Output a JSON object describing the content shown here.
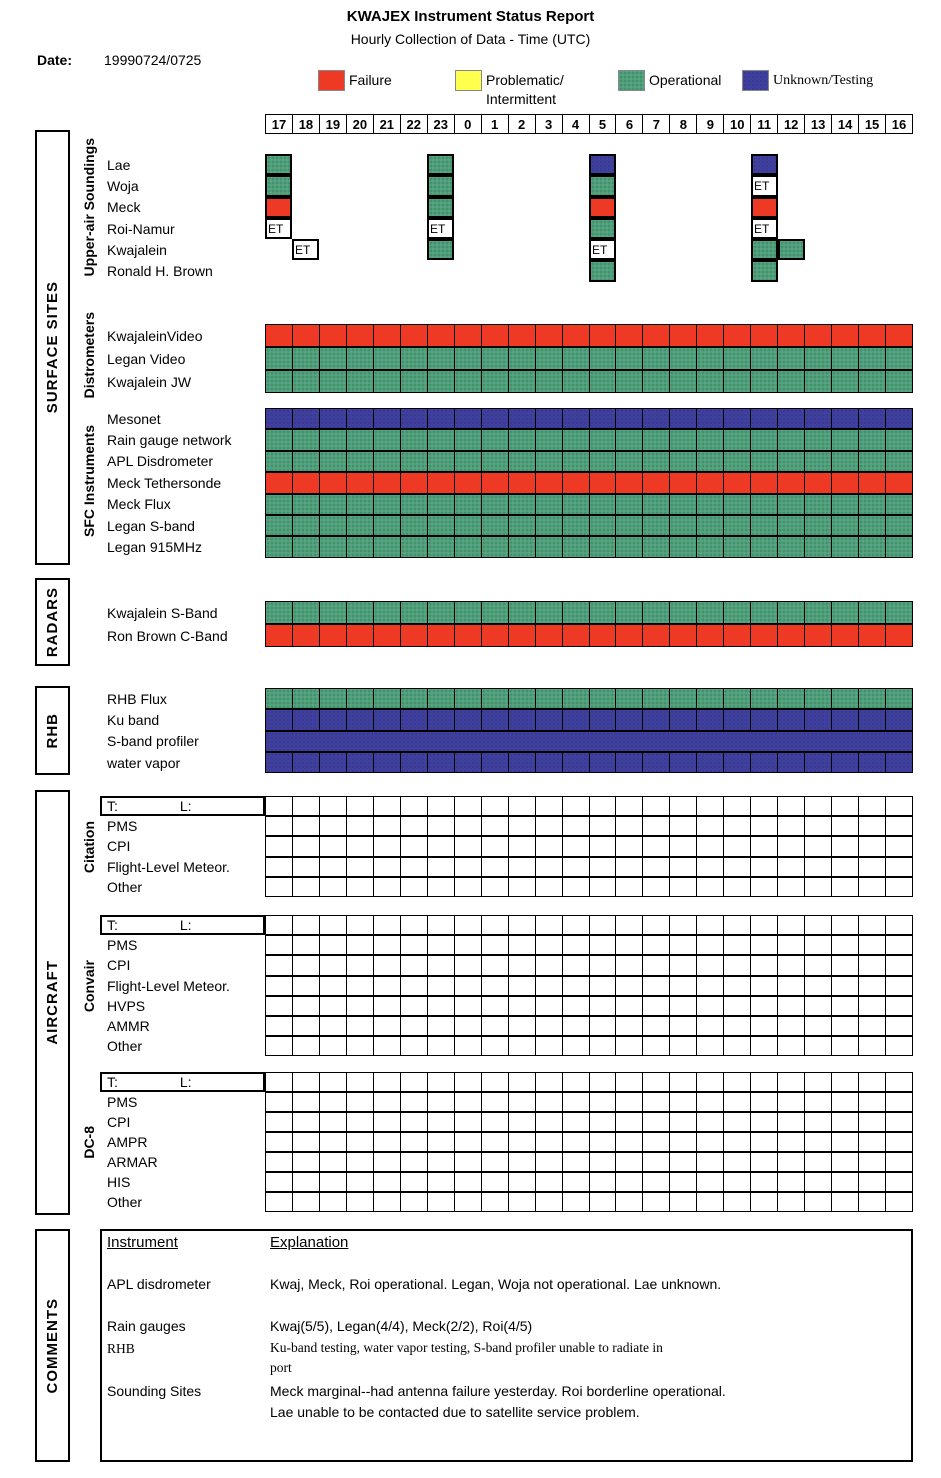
{
  "title": "KWAJEX Instrument Status Report",
  "subtitle": "Hourly Collection of Data - Time (UTC)",
  "date": {
    "label": "Date:",
    "value": "19990724/0725"
  },
  "colors": {
    "F": "#ee3a24",
    "P": "#ffff4d",
    "O": "#4e9e7a",
    "U": "#3f3f9d"
  },
  "legend": {
    "items": [
      {
        "status": "F",
        "label": "Failure"
      },
      {
        "status": "P",
        "label": "Problematic/",
        "label2": "Intermittent"
      },
      {
        "status": "O",
        "label": "Operational"
      },
      {
        "status": "U",
        "label": "Unknown/Testing"
      }
    ]
  },
  "hours": [
    "17",
    "18",
    "19",
    "20",
    "21",
    "22",
    "23",
    "0",
    "1",
    "2",
    "3",
    "4",
    "5",
    "6",
    "7",
    "8",
    "9",
    "10",
    "11",
    "12",
    "13",
    "14",
    "15",
    "16"
  ],
  "side_labels": {
    "surface_sites": "SURFACE SITES",
    "radars": "RADARS",
    "rhb": "RHB",
    "aircraft": "AIRCRAFT",
    "comments": "COMMENTS"
  },
  "soundings": {
    "group_label": "Upper-air Soundings",
    "rows": [
      {
        "label": "Lae",
        "cells": [
          {
            "i": 0,
            "s": "O"
          },
          {
            "i": 6,
            "s": "O"
          },
          {
            "i": 12,
            "s": "U"
          },
          {
            "i": 18,
            "s": "U"
          }
        ]
      },
      {
        "label": "Woja",
        "cells": [
          {
            "i": 0,
            "s": "O"
          },
          {
            "i": 6,
            "s": "O"
          },
          {
            "i": 12,
            "s": "O"
          },
          {
            "i": 18,
            "s": "ET"
          }
        ]
      },
      {
        "label": "Meck",
        "cells": [
          {
            "i": 0,
            "s": "F"
          },
          {
            "i": 6,
            "s": "O"
          },
          {
            "i": 12,
            "s": "F"
          },
          {
            "i": 18,
            "s": "F"
          }
        ]
      },
      {
        "label": "Roi-Namur",
        "cells": [
          {
            "i": 0,
            "s": "ET"
          },
          {
            "i": 6,
            "s": "ET"
          },
          {
            "i": 12,
            "s": "O"
          },
          {
            "i": 18,
            "s": "ET"
          }
        ]
      },
      {
        "label": "Kwajalein",
        "cells": [
          {
            "i": 1,
            "s": "ET"
          },
          {
            "i": 6,
            "s": "O"
          },
          {
            "i": 12,
            "s": "ET"
          },
          {
            "i": 18,
            "s": "O"
          },
          {
            "i": 19,
            "s": "O"
          }
        ]
      },
      {
        "label": "Ronald H. Brown",
        "cells": [
          {
            "i": 12,
            "s": "O"
          },
          {
            "i": 18,
            "s": "O"
          }
        ]
      }
    ]
  },
  "distrometers": {
    "group_label": "Distrometers",
    "rows": [
      {
        "label": "KwajaleinVideo",
        "fill": "F"
      },
      {
        "label": "Legan Video",
        "fill": "O"
      },
      {
        "label": "Kwajalein JW",
        "fill": "O"
      }
    ]
  },
  "sfc": {
    "group_label": "SFC Instruments",
    "rows": [
      {
        "label": "Mesonet",
        "fill": "U"
      },
      {
        "label": "Rain gauge network",
        "fill": "O"
      },
      {
        "label": "APL Disdrometer",
        "fill": "O"
      },
      {
        "label": "Meck Tethersonde",
        "fill": "F"
      },
      {
        "label": "Meck Flux",
        "fill": "O"
      },
      {
        "label": "Legan S-band",
        "fill": "O"
      },
      {
        "label": "Legan 915MHz",
        "fill": "O"
      }
    ]
  },
  "radars": {
    "rows": [
      {
        "label": "Kwajalein S-Band",
        "fill": "O"
      },
      {
        "label": "Ron Brown C-Band",
        "fill": "F"
      }
    ]
  },
  "rhb": {
    "rows": [
      {
        "label": "RHB Flux",
        "fill": "O"
      },
      {
        "label": "Ku band",
        "fill": "U"
      },
      {
        "label": "S-band profiler",
        "fill": "U",
        "solid": true
      },
      {
        "label": "water vapor",
        "fill": "U"
      }
    ]
  },
  "aircraft": {
    "groups": [
      {
        "name": "Citation",
        "header": {
          "t": "T:",
          "l": "L:"
        },
        "rows": [
          "PMS",
          "CPI",
          "Flight-Level Meteor.",
          "Other"
        ]
      },
      {
        "name": "Convair",
        "header": {
          "t": "T:",
          "l": "L:"
        },
        "rows": [
          "PMS",
          "CPI",
          "Flight-Level Meteor.",
          "HVPS",
          "AMMR",
          "Other"
        ]
      },
      {
        "name": "DC-8",
        "header": {
          "t": "T:",
          "l": "L:"
        },
        "rows": [
          "PMS",
          "CPI",
          "AMPR",
          "ARMAR",
          "HIS",
          "Other"
        ]
      }
    ]
  },
  "comments": {
    "col1_header": "Instrument",
    "col2_header": "Explanation",
    "entries": [
      {
        "instrument": "APL disdrometer",
        "lines": [
          "Kwaj, Meck, Roi operational. Legan, Woja not operational. Lae unknown."
        ]
      },
      {
        "instrument": "Rain gauges",
        "lines": [
          "Kwaj(5/5), Legan(4/4), Meck(2/2), Roi(4/5)"
        ]
      },
      {
        "instrument": "RHB",
        "serif": true,
        "lines": [
          "Ku-band testing, water vapor testing, S-band profiler unable to radiate in",
          "port"
        ]
      },
      {
        "instrument": "Sounding Sites",
        "lines": [
          "Meck marginal--had antenna failure yesterday. Roi borderline operational.",
          "Lae unable to be contacted due to satellite service problem."
        ]
      }
    ]
  }
}
